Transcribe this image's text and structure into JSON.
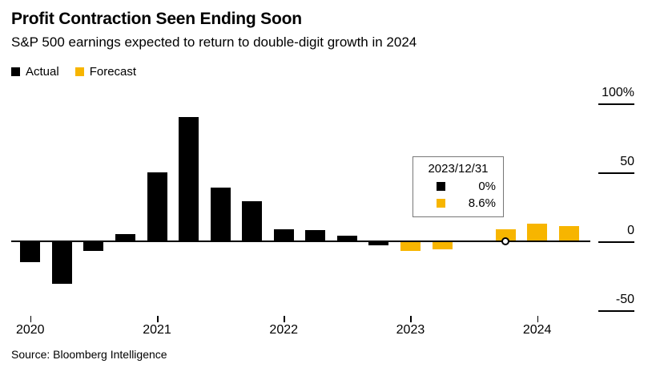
{
  "header": {
    "title": "Profit Contraction Seen Ending Soon",
    "subtitle": "S&P 500 earnings expected to return to double-digit growth in 2024",
    "legend": [
      {
        "label": "Actual",
        "color": "#000000"
      },
      {
        "label": "Forecast",
        "color": "#f7b500"
      }
    ]
  },
  "tooltip": {
    "date": "2023/12/31",
    "rows": [
      {
        "series": "Actual",
        "color": "#000000",
        "value": "0%"
      },
      {
        "series": "Forecast",
        "color": "#f7b500",
        "value": "8.6%"
      }
    ]
  },
  "source": "Source: Bloomberg Intelligence",
  "chart_data": {
    "type": "bar",
    "title": "Profit Contraction Seen Ending Soon",
    "subtitle": "S&P 500 earnings expected to return to double-digit growth in 2024",
    "unit": "%",
    "ylim": [
      -50,
      100
    ],
    "grid": false,
    "legend_position": "top-left",
    "categories": [
      "2020 Q1",
      "2020 Q2",
      "2020 Q3",
      "2020 Q4",
      "2021 Q1",
      "2021 Q2",
      "2021 Q3",
      "2021 Q4",
      "2022 Q1",
      "2022 Q2",
      "2022 Q3",
      "2022 Q4",
      "2023 Q1",
      "2023 Q2",
      "2023 Q3",
      "2023 Q4",
      "2024 Q1",
      "2024 Q2"
    ],
    "series": [
      {
        "name": "Actual",
        "color": "#000000",
        "values": [
          -15,
          -31,
          -7,
          5,
          50,
          90,
          39,
          29,
          9,
          8,
          4,
          -3,
          null,
          null,
          null,
          0,
          null,
          null
        ]
      },
      {
        "name": "Forecast",
        "color": "#f7b500",
        "values": [
          null,
          null,
          null,
          null,
          null,
          null,
          null,
          null,
          null,
          null,
          null,
          null,
          -7,
          -6,
          null,
          8.6,
          13,
          11
        ]
      }
    ],
    "y_ticks": [
      {
        "label": "100%",
        "value": 100
      },
      {
        "label": "50",
        "value": 50
      },
      {
        "label": "0",
        "value": 0
      },
      {
        "label": "-50",
        "value": -50
      }
    ],
    "x_ticks": [
      {
        "label": "2020",
        "slot": 0
      },
      {
        "label": "2021",
        "slot": 4
      },
      {
        "label": "2022",
        "slot": 8
      },
      {
        "label": "2023",
        "slot": 12
      },
      {
        "label": "2024",
        "slot": 16
      }
    ],
    "highlight": {
      "category": "2023 Q4",
      "slot": 15,
      "actual_value": 0,
      "forecast_value": 8.6
    }
  }
}
